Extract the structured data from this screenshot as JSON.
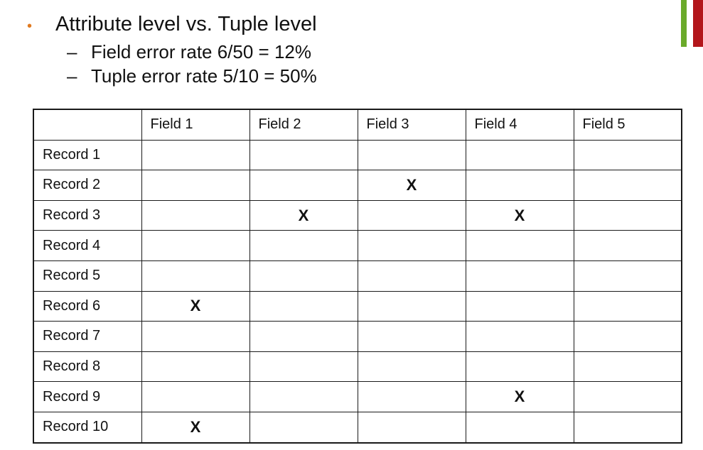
{
  "colors": {
    "bullet": "#e07a20",
    "accent_green": "#6aaa2a",
    "accent_red": "#b3161b"
  },
  "bullet": {
    "symbol": "•",
    "text": "Attribute level vs. Tuple level"
  },
  "sub_items": [
    {
      "dash": "–",
      "text": "Field error rate 6/50 = 12%"
    },
    {
      "dash": "–",
      "text": "Tuple error rate 5/10 = 50%"
    }
  ],
  "table": {
    "headers": [
      "",
      "Field 1",
      "Field 2",
      "Field 3",
      "Field 4",
      "Field 5"
    ],
    "rows": [
      {
        "label": "Record 1",
        "cells": [
          "",
          "",
          "",
          "",
          ""
        ]
      },
      {
        "label": "Record 2",
        "cells": [
          "",
          "",
          "X",
          "",
          ""
        ]
      },
      {
        "label": "Record 3",
        "cells": [
          "",
          "X",
          "",
          "X",
          ""
        ]
      },
      {
        "label": "Record 4",
        "cells": [
          "",
          "",
          "",
          "",
          ""
        ]
      },
      {
        "label": "Record 5",
        "cells": [
          "",
          "",
          "",
          "",
          ""
        ]
      },
      {
        "label": "Record 6",
        "cells": [
          "X",
          "",
          "",
          "",
          ""
        ]
      },
      {
        "label": "Record 7",
        "cells": [
          "",
          "",
          "",
          "",
          ""
        ]
      },
      {
        "label": "Record 8",
        "cells": [
          "",
          "",
          "",
          "",
          ""
        ]
      },
      {
        "label": "Record 9",
        "cells": [
          "",
          "",
          "",
          "X",
          ""
        ]
      },
      {
        "label": "Record 10",
        "cells": [
          "X",
          "",
          "",
          "",
          ""
        ]
      }
    ]
  }
}
